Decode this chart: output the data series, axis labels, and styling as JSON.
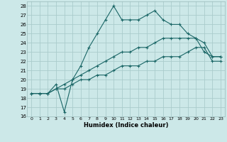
{
  "xlabel": "Humidex (Indice chaleur)",
  "background_color": "#cce8e8",
  "grid_color": "#aacccc",
  "line_color": "#1a6666",
  "xlim": [
    -0.5,
    23.5
  ],
  "ylim": [
    16,
    28.5
  ],
  "xticks": [
    0,
    1,
    2,
    3,
    4,
    5,
    6,
    7,
    8,
    9,
    10,
    11,
    12,
    13,
    14,
    15,
    16,
    17,
    18,
    19,
    20,
    21,
    22,
    23
  ],
  "yticks": [
    16,
    17,
    18,
    19,
    20,
    21,
    22,
    23,
    24,
    25,
    26,
    27,
    28
  ],
  "line1": [
    18.5,
    18.5,
    18.5,
    19.5,
    16.5,
    20.0,
    21.5,
    23.5,
    25.0,
    26.5,
    28.0,
    26.5,
    26.5,
    26.5,
    27.0,
    27.5,
    26.5,
    26.0,
    26.0,
    25.0,
    24.5,
    23.0,
    22.5,
    22.5
  ],
  "line2": [
    18.5,
    18.5,
    18.5,
    19.0,
    19.5,
    20.0,
    20.5,
    21.0,
    21.5,
    22.0,
    22.5,
    23.0,
    23.0,
    23.5,
    23.5,
    24.0,
    24.5,
    24.5,
    24.5,
    24.5,
    24.5,
    24.0,
    22.5,
    22.5
  ],
  "line3": [
    18.5,
    18.5,
    18.5,
    19.0,
    19.0,
    19.5,
    20.0,
    20.0,
    20.5,
    20.5,
    21.0,
    21.5,
    21.5,
    21.5,
    22.0,
    22.0,
    22.5,
    22.5,
    22.5,
    23.0,
    23.5,
    23.5,
    22.0,
    22.0
  ]
}
